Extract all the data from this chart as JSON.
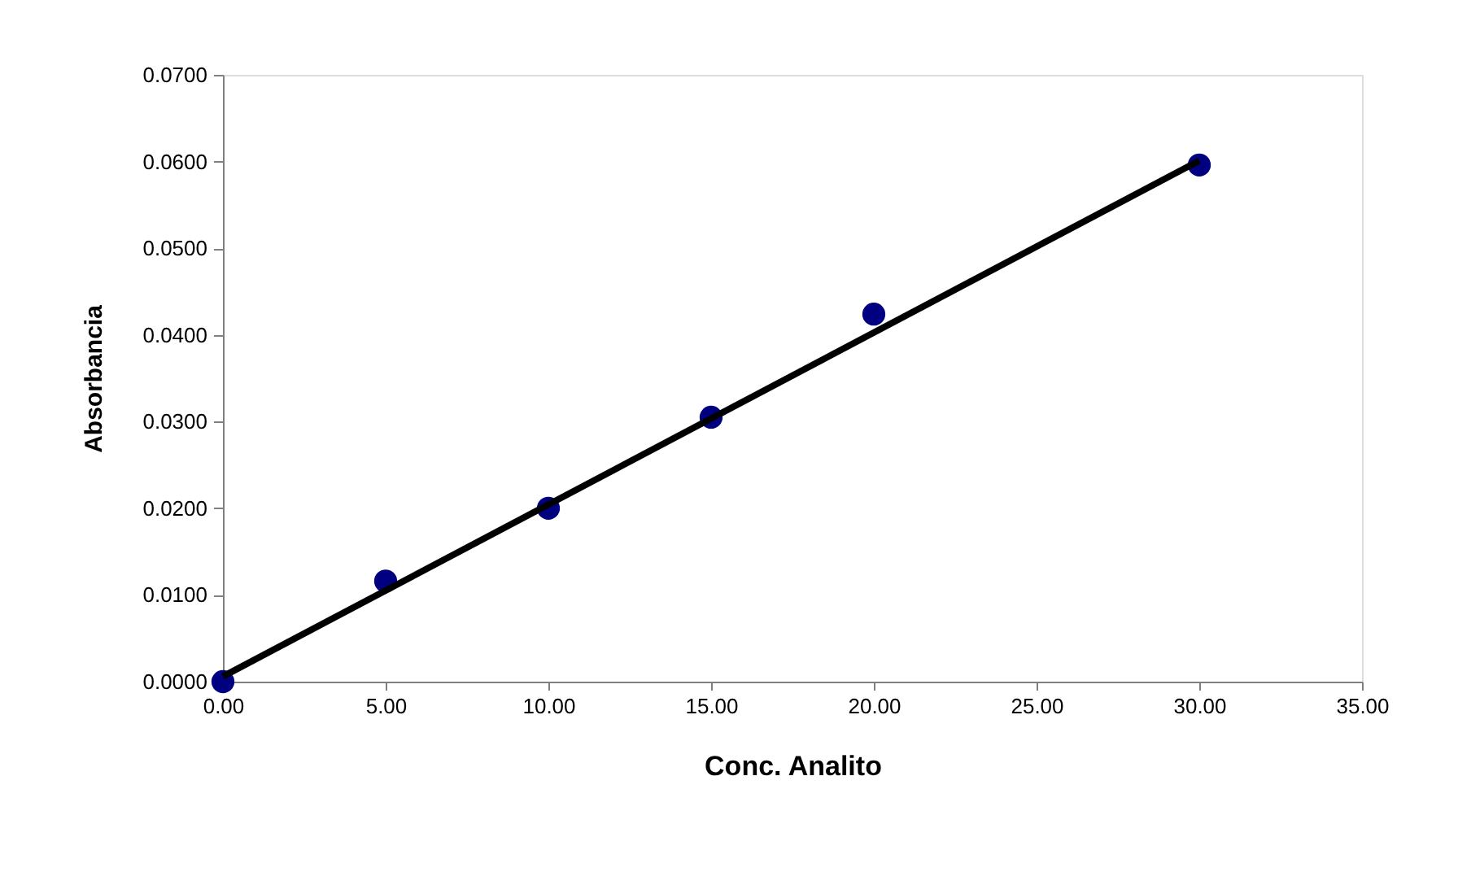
{
  "chart_data": {
    "type": "scatter",
    "xlabel": "Conc. Analito",
    "ylabel": "Absorbancia",
    "x": [
      0,
      5,
      10,
      15,
      20,
      30
    ],
    "series": [
      {
        "color": "#000080",
        "marker": "circle",
        "values": [
          0.0,
          0.0116,
          0.02,
          0.0305,
          0.0424,
          0.0596
        ]
      },
      {
        "type": "line",
        "color": "#000000",
        "line_style": "solid",
        "x": [
          0,
          30
        ],
        "values": [
          0.0006,
          0.0601
        ]
      }
    ],
    "xlim": [
      0,
      35
    ],
    "xticks": [
      {
        "value": 0,
        "label": "0.00"
      },
      {
        "value": 5,
        "label": "5.00"
      },
      {
        "value": 10,
        "label": "10.00"
      },
      {
        "value": 15,
        "label": "15.00"
      },
      {
        "value": 20,
        "label": "20.00"
      },
      {
        "value": 25,
        "label": "25.00"
      },
      {
        "value": 30,
        "label": "30.00"
      },
      {
        "value": 35,
        "label": "35.00"
      }
    ],
    "ylim": [
      0,
      0.07
    ],
    "yticks": [
      {
        "value": 0,
        "label": "0.0000"
      },
      {
        "value": 0.01,
        "label": "0.0100"
      },
      {
        "value": 0.02,
        "label": "0.0200"
      },
      {
        "value": 0.03,
        "label": "0.0300"
      },
      {
        "value": 0.04,
        "label": "0.0400"
      },
      {
        "value": 0.05,
        "label": "0.0500"
      },
      {
        "value": 0.06,
        "label": "0.0600"
      },
      {
        "value": 0.07,
        "label": "0.0700"
      }
    ],
    "grid": false
  }
}
